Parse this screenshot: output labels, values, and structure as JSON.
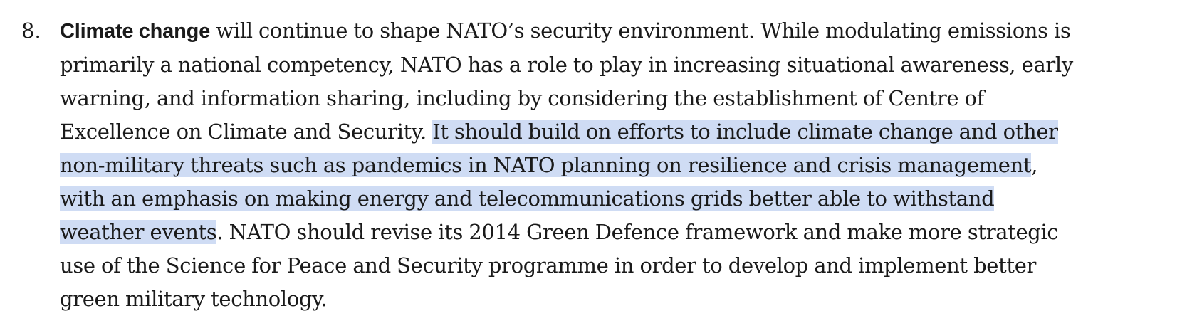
{
  "paragraph": {
    "number": "8.",
    "lines": [
      {
        "bold": "Climate change",
        "text": " will continue to shape NATO’s security environment. While modulating emissions is"
      },
      {
        "text": "primarily a national competency, NATO has a role to play in increasing situational awareness, early"
      },
      {
        "text": "warning, and information sharing, including by considering the establishment of Centre of"
      },
      {
        "text": "Excellence on Climate and Security. ",
        "highlight": "It should build on efforts to include climate change and other"
      },
      {
        "highlight": "non-military threats such as pandemics in NATO planning on resilience and crisis management",
        "text_after": ","
      },
      {
        "highlight": "with an emphasis on making energy and telecommunications grids better able to withstand"
      },
      {
        "highlight": "weather events",
        "text_after": ". NATO should revise its 2014 Green Defence framework and make more strategic"
      },
      {
        "text": "use of the Science for Peace and Security programme in order to develop and implement better"
      },
      {
        "text": "green military technology."
      }
    ]
  },
  "colors": {
    "selection_highlight": "#cfdcf4",
    "text": "#1a1a1a",
    "background": "#ffffff"
  }
}
